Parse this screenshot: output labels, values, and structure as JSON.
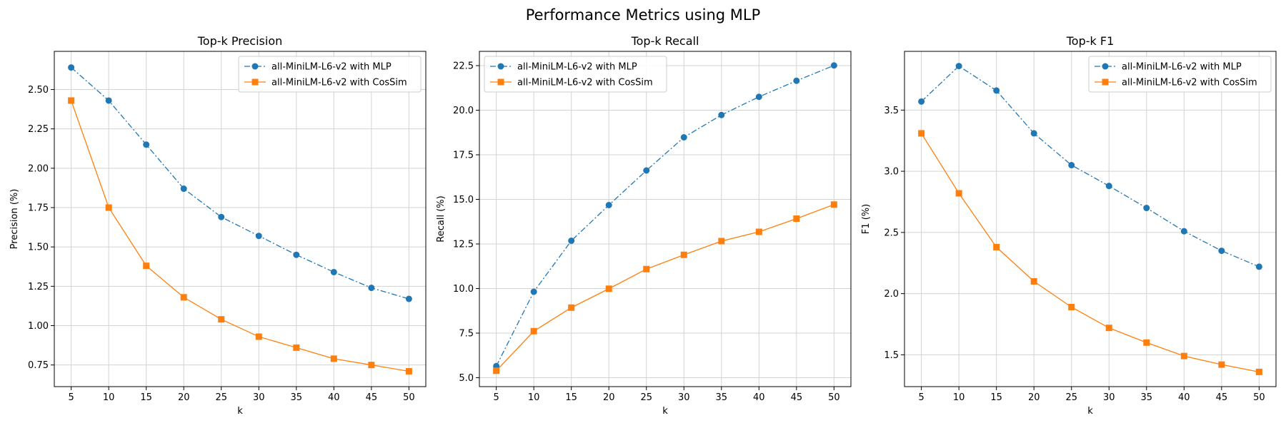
{
  "suptitle": "Performance Metrics using MLP",
  "colors": {
    "mlp": "#1f77b4",
    "cossim": "#ff7f0e",
    "grid": "#d3d3d3"
  },
  "chart_data": [
    {
      "type": "line",
      "title": "Top-k Precision",
      "xlabel": "k",
      "ylabel": "Precision (%)",
      "x": [
        5,
        10,
        15,
        20,
        25,
        30,
        35,
        40,
        45,
        50
      ],
      "xticks": [
        "5",
        "10",
        "15",
        "20",
        "25",
        "30",
        "35",
        "40",
        "45",
        "50"
      ],
      "xlim": [
        2.75,
        52.25
      ],
      "ylim": [
        0.6125,
        2.7425
      ],
      "yticks": [
        0.75,
        1.0,
        1.25,
        1.5,
        1.75,
        2.0,
        2.25,
        2.5
      ],
      "yticklabels": [
        "0.75",
        "1.00",
        "1.25",
        "1.50",
        "1.75",
        "2.00",
        "2.25",
        "2.50"
      ],
      "grid": true,
      "legend_position": "upper right",
      "series": [
        {
          "name": "all-MiniLM-L6-v2 with MLP",
          "style": "dashdot",
          "marker": "circle",
          "values": [
            2.64,
            2.43,
            2.15,
            1.87,
            1.69,
            1.57,
            1.45,
            1.34,
            1.24,
            1.17
          ]
        },
        {
          "name": "all-MiniLM-L6-v2 with CosSim",
          "style": "solid",
          "marker": "square",
          "values": [
            2.43,
            1.75,
            1.38,
            1.18,
            1.04,
            0.93,
            0.86,
            0.79,
            0.75,
            0.71
          ]
        }
      ]
    },
    {
      "type": "line",
      "title": "Top-k Recall",
      "xlabel": "k",
      "ylabel": "Recall (%)",
      "x": [
        5,
        10,
        15,
        20,
        25,
        30,
        35,
        40,
        45,
        50
      ],
      "xticks": [
        "5",
        "10",
        "15",
        "20",
        "25",
        "30",
        "35",
        "40",
        "45",
        "50"
      ],
      "xlim": [
        2.75,
        52.25
      ],
      "ylim": [
        4.5,
        23.3
      ],
      "yticks": [
        5.0,
        7.5,
        10.0,
        12.5,
        15.0,
        17.5,
        20.0,
        22.5
      ],
      "yticklabels": [
        "5.0",
        "7.5",
        "10.0",
        "12.5",
        "15.0",
        "17.5",
        "20.0",
        "22.5"
      ],
      "grid": true,
      "legend_position": "upper left",
      "series": [
        {
          "name": "all-MiniLM-L6-v2 with MLP",
          "style": "dashdot",
          "marker": "circle",
          "values": [
            5.65,
            9.82,
            12.68,
            14.68,
            16.62,
            18.48,
            19.73,
            20.75,
            21.65,
            22.51
          ]
        },
        {
          "name": "all-MiniLM-L6-v2 with CosSim",
          "style": "solid",
          "marker": "square",
          "values": [
            5.39,
            7.61,
            8.93,
            9.99,
            11.09,
            11.89,
            12.66,
            13.18,
            13.92,
            14.71
          ]
        }
      ]
    },
    {
      "type": "line",
      "title": "Top-k F1",
      "xlabel": "k",
      "ylabel": "F1 (%)",
      "x": [
        5,
        10,
        15,
        20,
        25,
        30,
        35,
        40,
        45,
        50
      ],
      "xticks": [
        "5",
        "10",
        "15",
        "20",
        "25",
        "30",
        "35",
        "40",
        "45",
        "50"
      ],
      "xlim": [
        2.75,
        52.25
      ],
      "ylim": [
        1.24,
        3.98
      ],
      "yticks": [
        1.5,
        2.0,
        2.5,
        3.0,
        3.5
      ],
      "yticklabels": [
        "1.5",
        "2.0",
        "2.5",
        "3.0",
        "3.5"
      ],
      "grid": true,
      "legend_position": "upper right",
      "series": [
        {
          "name": "all-MiniLM-L6-v2 with MLP",
          "style": "dashdot",
          "marker": "circle",
          "values": [
            3.57,
            3.86,
            3.66,
            3.31,
            3.05,
            2.88,
            2.7,
            2.51,
            2.35,
            2.22
          ]
        },
        {
          "name": "all-MiniLM-L6-v2 with CosSim",
          "style": "solid",
          "marker": "square",
          "values": [
            3.31,
            2.82,
            2.38,
            2.1,
            1.89,
            1.72,
            1.6,
            1.49,
            1.42,
            1.36
          ]
        }
      ]
    }
  ]
}
